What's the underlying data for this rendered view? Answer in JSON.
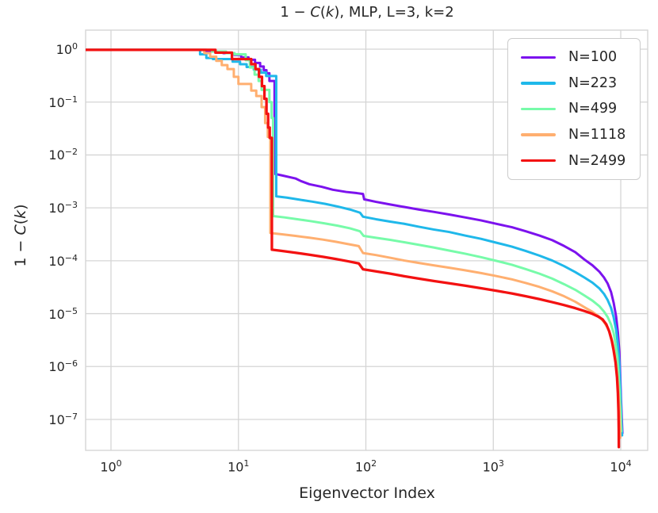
{
  "figure": {
    "background": "#ffffff",
    "text_color": "#262626",
    "grid_color": "#d5d5d5"
  },
  "title_parts": {
    "p0": "1 − ",
    "p1": "C",
    "p2": "(",
    "p3": "k",
    "p4": "), MLP, L=3, k=2"
  },
  "ylabel_parts": {
    "p0": "1 − ",
    "p1": "C",
    "p2": "(",
    "p3": "k",
    "p4": ")"
  },
  "chart_data": {
    "type": "line",
    "title": "1 − C(k), MLP, L=3, k=2",
    "xlabel": "Eigenvector Index",
    "ylabel": "1 − C(k)",
    "xscale": "log",
    "yscale": "log",
    "xlim": [
      0.63,
      16000
    ],
    "ylim": [
      2.6e-08,
      2.3
    ],
    "x_tick_exponents": [
      0,
      1,
      2,
      3,
      4
    ],
    "y_tick_exponents": [
      0,
      -1,
      -2,
      -3,
      -4,
      -5,
      -6,
      -7
    ],
    "grid": true,
    "legend_position": "upper right",
    "series": [
      {
        "name": "N=100",
        "color": "#7C12EE",
        "points": [
          [
            0.63,
            0.97
          ],
          [
            5.6,
            0.97
          ],
          [
            5.6,
            0.9
          ],
          [
            7.6,
            0.9
          ],
          [
            7.6,
            0.84
          ],
          [
            9.3,
            0.84
          ],
          [
            9.3,
            0.78
          ],
          [
            10.5,
            0.78
          ],
          [
            10.5,
            0.7
          ],
          [
            12,
            0.7
          ],
          [
            12,
            0.63
          ],
          [
            13.5,
            0.63
          ],
          [
            13.5,
            0.55
          ],
          [
            14.8,
            0.55
          ],
          [
            14.8,
            0.47
          ],
          [
            15.8,
            0.47
          ],
          [
            15.8,
            0.4
          ],
          [
            16.6,
            0.4
          ],
          [
            16.6,
            0.35
          ],
          [
            17.5,
            0.35
          ],
          [
            17.5,
            0.25
          ],
          [
            19.2,
            0.25
          ],
          [
            19.2,
            0.0044
          ],
          [
            22,
            0.0041
          ],
          [
            28,
            0.0036
          ],
          [
            31,
            0.0032
          ],
          [
            36,
            0.0028
          ],
          [
            45,
            0.0025
          ],
          [
            55,
            0.0022
          ],
          [
            70,
            0.002
          ],
          [
            85,
            0.0019
          ],
          [
            95,
            0.00183
          ],
          [
            97,
            0.00145
          ],
          [
            120,
            0.0013
          ],
          [
            155,
            0.00116
          ],
          [
            200,
            0.00104
          ],
          [
            260,
            0.00093
          ],
          [
            340,
            0.00084
          ],
          [
            450,
            0.00075
          ],
          [
            600,
            0.00066
          ],
          [
            800,
            0.00058
          ],
          [
            1050,
            0.0005
          ],
          [
            1400,
            0.00043
          ],
          [
            1800,
            0.00036
          ],
          [
            2300,
            0.0003
          ],
          [
            2900,
            0.000245
          ],
          [
            3600,
            0.00019
          ],
          [
            4400,
            0.000145
          ],
          [
            5200,
            0.000105
          ],
          [
            6000,
            8.2e-05
          ],
          [
            6800,
            6.2e-05
          ],
          [
            7400,
            4.8e-05
          ],
          [
            7900,
            3.7e-05
          ],
          [
            8400,
            2.55e-05
          ],
          [
            8800,
            1.6e-05
          ],
          [
            9200,
            8.8e-06
          ],
          [
            9500,
            4.4e-06
          ],
          [
            9750,
            1.9e-06
          ],
          [
            9900,
            7e-07
          ],
          [
            10050,
            2.4e-07
          ],
          [
            10200,
            1e-07
          ],
          [
            10300,
            5.5e-08
          ]
        ]
      },
      {
        "name": "N=223",
        "color": "#1FB8EA",
        "points": [
          [
            0.63,
            0.97
          ],
          [
            5.0,
            0.97
          ],
          [
            5.0,
            0.8
          ],
          [
            5.6,
            0.8
          ],
          [
            5.6,
            0.68
          ],
          [
            6.3,
            0.68
          ],
          [
            6.3,
            0.65
          ],
          [
            9.0,
            0.65
          ],
          [
            9.0,
            0.58
          ],
          [
            10.3,
            0.58
          ],
          [
            10.3,
            0.52
          ],
          [
            11.6,
            0.52
          ],
          [
            11.6,
            0.46
          ],
          [
            13.2,
            0.46
          ],
          [
            13.2,
            0.41
          ],
          [
            15.0,
            0.41
          ],
          [
            15.0,
            0.36
          ],
          [
            16.5,
            0.36
          ],
          [
            16.5,
            0.31
          ],
          [
            19.8,
            0.31
          ],
          [
            19.8,
            0.00165
          ],
          [
            24,
            0.00156
          ],
          [
            30,
            0.00143
          ],
          [
            38,
            0.00131
          ],
          [
            48,
            0.00119
          ],
          [
            60,
            0.00106
          ],
          [
            75,
            0.00093
          ],
          [
            90,
            0.00081
          ],
          [
            95,
            0.00068
          ],
          [
            120,
            0.00061
          ],
          [
            155,
            0.00055
          ],
          [
            200,
            0.0005
          ],
          [
            260,
            0.00044
          ],
          [
            340,
            0.00039
          ],
          [
            450,
            0.00035
          ],
          [
            600,
            0.0003
          ],
          [
            800,
            0.00026
          ],
          [
            1050,
            0.00022
          ],
          [
            1400,
            0.000185
          ],
          [
            1800,
            0.000153
          ],
          [
            2300,
            0.000125
          ],
          [
            2900,
            0.000101
          ],
          [
            3600,
            7.9e-05
          ],
          [
            4400,
            6.1e-05
          ],
          [
            5200,
            4.8e-05
          ],
          [
            6000,
            3.85e-05
          ],
          [
            6800,
            3e-05
          ],
          [
            7400,
            2.35e-05
          ],
          [
            7900,
            1.8e-05
          ],
          [
            8400,
            1.28e-05
          ],
          [
            8800,
            8.5e-06
          ],
          [
            9200,
            4.9e-06
          ],
          [
            9500,
            2.6e-06
          ],
          [
            9750,
            1.2e-06
          ],
          [
            9900,
            4.5e-07
          ],
          [
            10050,
            1.7e-07
          ],
          [
            10150,
            8e-08
          ],
          [
            10250,
            5e-08
          ]
        ]
      },
      {
        "name": "N=499",
        "color": "#77FBA9",
        "points": [
          [
            0.63,
            0.97
          ],
          [
            6.2,
            0.97
          ],
          [
            6.2,
            0.9
          ],
          [
            8.0,
            0.9
          ],
          [
            8.0,
            0.84
          ],
          [
            9.3,
            0.84
          ],
          [
            9.3,
            0.8
          ],
          [
            11.4,
            0.8
          ],
          [
            11.4,
            0.62
          ],
          [
            12.3,
            0.62
          ],
          [
            12.3,
            0.45
          ],
          [
            13.4,
            0.45
          ],
          [
            13.4,
            0.33
          ],
          [
            14.4,
            0.33
          ],
          [
            14.4,
            0.25
          ],
          [
            15.2,
            0.25
          ],
          [
            15.2,
            0.17
          ],
          [
            17.5,
            0.17
          ],
          [
            17.5,
            0.1
          ],
          [
            18.2,
            0.1
          ],
          [
            18.2,
            0.05
          ],
          [
            18.7,
            0.05
          ],
          [
            18.7,
            0.0007
          ],
          [
            23,
            0.00066
          ],
          [
            29,
            0.00061
          ],
          [
            37,
            0.00056
          ],
          [
            47,
            0.00051
          ],
          [
            60,
            0.00046
          ],
          [
            75,
            0.00041
          ],
          [
            90,
            0.00036
          ],
          [
            96,
            0.000295
          ],
          [
            120,
            0.000272
          ],
          [
            155,
            0.000248
          ],
          [
            200,
            0.000224
          ],
          [
            260,
            0.0002
          ],
          [
            340,
            0.000178
          ],
          [
            450,
            0.000156
          ],
          [
            600,
            0.000136
          ],
          [
            800,
            0.000117
          ],
          [
            1050,
            0.0001
          ],
          [
            1400,
            8.4e-05
          ],
          [
            1800,
            6.95e-05
          ],
          [
            2300,
            5.7e-05
          ],
          [
            2900,
            4.6e-05
          ],
          [
            3600,
            3.6e-05
          ],
          [
            4400,
            2.82e-05
          ],
          [
            5200,
            2.2e-05
          ],
          [
            6000,
            1.76e-05
          ],
          [
            6800,
            1.38e-05
          ],
          [
            7400,
            1.09e-05
          ],
          [
            7900,
            8.6e-06
          ],
          [
            8400,
            6.2e-06
          ],
          [
            8800,
            4.3e-06
          ],
          [
            9100,
            2.7e-06
          ],
          [
            9400,
            1.5e-06
          ],
          [
            9650,
            6.8e-07
          ],
          [
            9850,
            2.7e-07
          ],
          [
            10000,
            1.2e-07
          ],
          [
            10100,
            6e-08
          ]
        ]
      },
      {
        "name": "N=1118",
        "color": "#FFAF70",
        "points": [
          [
            0.63,
            0.97
          ],
          [
            5.4,
            0.97
          ],
          [
            5.4,
            0.84
          ],
          [
            6.0,
            0.84
          ],
          [
            6.0,
            0.72
          ],
          [
            6.7,
            0.72
          ],
          [
            6.7,
            0.6
          ],
          [
            7.4,
            0.6
          ],
          [
            7.4,
            0.5
          ],
          [
            8.2,
            0.5
          ],
          [
            8.2,
            0.42
          ],
          [
            9.2,
            0.42
          ],
          [
            9.2,
            0.3
          ],
          [
            10.0,
            0.3
          ],
          [
            10.0,
            0.22
          ],
          [
            12.6,
            0.22
          ],
          [
            12.6,
            0.165
          ],
          [
            13.8,
            0.165
          ],
          [
            13.8,
            0.13
          ],
          [
            15.2,
            0.13
          ],
          [
            15.2,
            0.08
          ],
          [
            16.2,
            0.08
          ],
          [
            16.2,
            0.04
          ],
          [
            17.0,
            0.04
          ],
          [
            17.0,
            0.022
          ],
          [
            17.8,
            0.022
          ],
          [
            17.8,
            0.000335
          ],
          [
            22,
            0.000316
          ],
          [
            28,
            0.000295
          ],
          [
            36,
            0.000273
          ],
          [
            46,
            0.000251
          ],
          [
            58,
            0.000229
          ],
          [
            72,
            0.000207
          ],
          [
            88,
            0.000189
          ],
          [
            95,
            0.00014
          ],
          [
            120,
            0.000128
          ],
          [
            155,
            0.000114
          ],
          [
            200,
            0.000101
          ],
          [
            260,
            9.1e-05
          ],
          [
            340,
            8.2e-05
          ],
          [
            450,
            7.4e-05
          ],
          [
            600,
            6.6e-05
          ],
          [
            800,
            5.85e-05
          ],
          [
            1050,
            5.15e-05
          ],
          [
            1400,
            4.45e-05
          ],
          [
            1800,
            3.8e-05
          ],
          [
            2300,
            3.2e-05
          ],
          [
            2900,
            2.64e-05
          ],
          [
            3600,
            2.13e-05
          ],
          [
            4400,
            1.68e-05
          ],
          [
            5200,
            1.32e-05
          ],
          [
            6000,
            1.08e-05
          ],
          [
            6800,
            8.7e-06
          ],
          [
            7400,
            6.9e-06
          ],
          [
            7900,
            5.4e-06
          ],
          [
            8300,
            4e-06
          ],
          [
            8700,
            2.6e-06
          ],
          [
            9000,
            1.6e-06
          ],
          [
            9300,
            8.5e-07
          ],
          [
            9550,
            4e-07
          ],
          [
            9750,
            1.7e-07
          ],
          [
            9850,
            8e-08
          ],
          [
            9920,
            4.5e-08
          ]
        ]
      },
      {
        "name": "N=2499",
        "color": "#F31111",
        "points": [
          [
            0.63,
            0.97
          ],
          [
            6.6,
            0.97
          ],
          [
            6.6,
            0.86
          ],
          [
            8.9,
            0.86
          ],
          [
            8.9,
            0.65
          ],
          [
            12.6,
            0.65
          ],
          [
            12.6,
            0.52
          ],
          [
            13.6,
            0.52
          ],
          [
            13.6,
            0.42
          ],
          [
            14.5,
            0.42
          ],
          [
            14.5,
            0.3
          ],
          [
            15.3,
            0.3
          ],
          [
            15.3,
            0.2
          ],
          [
            16.0,
            0.2
          ],
          [
            16.0,
            0.115
          ],
          [
            16.6,
            0.115
          ],
          [
            16.6,
            0.06
          ],
          [
            17.1,
            0.06
          ],
          [
            17.1,
            0.033
          ],
          [
            17.6,
            0.033
          ],
          [
            17.6,
            0.021
          ],
          [
            18.3,
            0.021
          ],
          [
            18.3,
            0.000162
          ],
          [
            22,
            0.000153
          ],
          [
            28,
            0.000142
          ],
          [
            36,
            0.00013
          ],
          [
            46,
            0.000119
          ],
          [
            58,
            0.000108
          ],
          [
            72,
            9.8e-05
          ],
          [
            88,
            8.9e-05
          ],
          [
            95,
            6.9e-05
          ],
          [
            120,
            6.3e-05
          ],
          [
            155,
            5.7e-05
          ],
          [
            200,
            5.1e-05
          ],
          [
            260,
            4.6e-05
          ],
          [
            340,
            4.15e-05
          ],
          [
            450,
            3.75e-05
          ],
          [
            600,
            3.38e-05
          ],
          [
            800,
            3.03e-05
          ],
          [
            1050,
            2.71e-05
          ],
          [
            1400,
            2.41e-05
          ],
          [
            1800,
            2.13e-05
          ],
          [
            2300,
            1.88e-05
          ],
          [
            2900,
            1.65e-05
          ],
          [
            3600,
            1.45e-05
          ],
          [
            4400,
            1.27e-05
          ],
          [
            5200,
            1.12e-05
          ],
          [
            6000,
            9.9e-06
          ],
          [
            6600,
            8.9e-06
          ],
          [
            7200,
            7.8e-06
          ],
          [
            7700,
            6.3e-06
          ],
          [
            8100,
            4.7e-06
          ],
          [
            8500,
            3.1e-06
          ],
          [
            8800,
            2e-06
          ],
          [
            9100,
            1.2e-06
          ],
          [
            9350,
            6.2e-07
          ],
          [
            9500,
            3.1e-07
          ],
          [
            9600,
            1.4e-07
          ],
          [
            9650,
            6e-08
          ],
          [
            9660,
            3e-08
          ]
        ]
      }
    ]
  }
}
